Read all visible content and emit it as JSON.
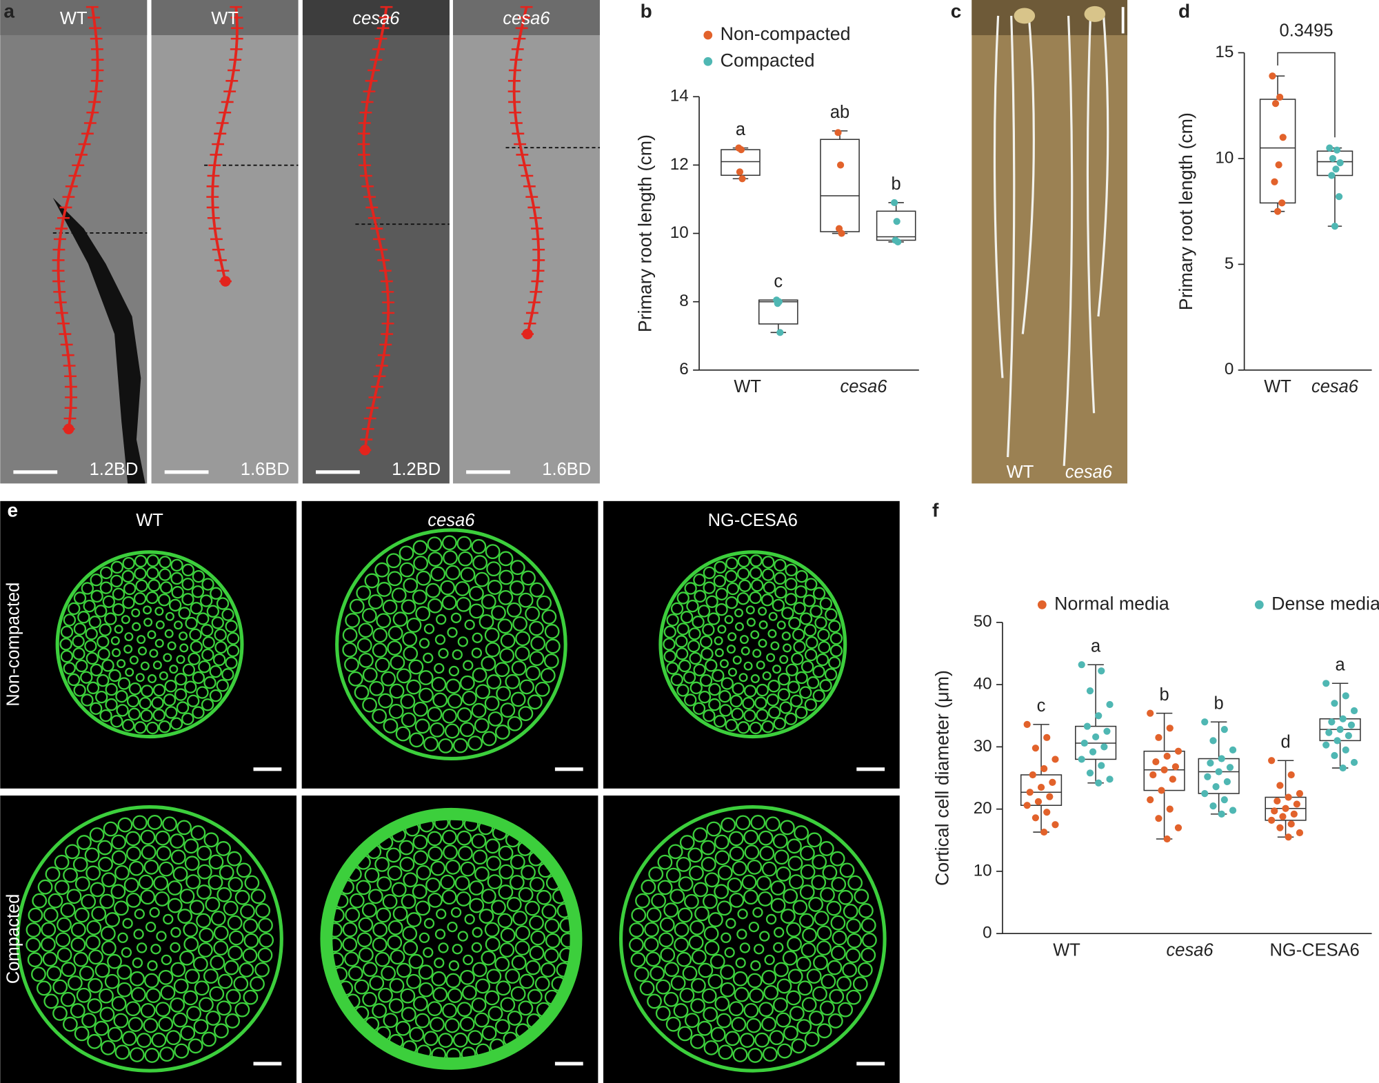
{
  "panel_a": {
    "label": "a",
    "images": [
      {
        "genotype": "WT",
        "density": "1.2BD"
      },
      {
        "genotype": "WT",
        "density": "1.6BD"
      },
      {
        "genotype": "cesa6",
        "density": "1.2BD"
      },
      {
        "genotype": "cesa6",
        "density": "1.6BD"
      }
    ]
  },
  "panel_c": {
    "label": "c",
    "labels": [
      "WT",
      "cesa6"
    ]
  },
  "panel_e": {
    "label": "e",
    "columns": [
      "WT",
      "cesa6",
      "NG-CESA6"
    ],
    "rows": [
      "Non-compacted",
      "Compacted"
    ]
  },
  "chart_data": [
    {
      "type": "box",
      "panel": "b",
      "ylabel": "Primary root length (cm)",
      "categories": [
        "WT",
        "cesa6"
      ],
      "category_italic": [
        false,
        true
      ],
      "ylim": [
        6,
        14
      ],
      "yticks": [
        6,
        8,
        10,
        12,
        14
      ],
      "series": [
        {
          "name": "Non-compacted",
          "color": "#e2622b",
          "whisker_low": [
            11.6,
            10.0
          ],
          "q1": [
            11.7,
            10.05
          ],
          "median": [
            12.1,
            11.1
          ],
          "q3": [
            12.45,
            12.75
          ],
          "whisker_high": [
            12.5,
            13.0
          ],
          "points": [
            [
              12.5,
              12.45,
              11.8,
              11.6
            ],
            [
              12.95,
              12.0,
              10.14,
              10.0
            ]
          ],
          "letters": [
            "a",
            "ab"
          ]
        },
        {
          "name": "Compacted",
          "color": "#4fb7b3",
          "whisker_low": [
            7.1,
            9.75
          ],
          "q1": [
            7.35,
            9.8
          ],
          "median": [
            8.0,
            9.9
          ],
          "q3": [
            8.05,
            10.65
          ],
          "whisker_high": [
            8.05,
            10.9
          ],
          "points": [
            [
              8.05,
              8.0,
              7.95,
              7.1
            ],
            [
              10.9,
              10.35,
              9.8,
              9.75
            ]
          ],
          "letters": [
            "c",
            "b"
          ]
        }
      ]
    },
    {
      "type": "box",
      "panel": "d",
      "ylabel": "Primary root length (cm)",
      "categories": [
        "WT",
        "cesa6"
      ],
      "category_italic": [
        false,
        true
      ],
      "ylim": [
        0,
        15
      ],
      "yticks": [
        0,
        5,
        10,
        15
      ],
      "annotation": "0.3495",
      "series": [
        {
          "colors": [
            "#e2622b",
            "#4fb7b3"
          ],
          "whisker_low": [
            7.5,
            6.8
          ],
          "q1": [
            7.9,
            9.2
          ],
          "median": [
            10.5,
            9.85
          ],
          "q3": [
            12.8,
            10.35
          ],
          "whisker_high": [
            13.9,
            10.5
          ],
          "points": [
            [
              13.9,
              12.9,
              12.6,
              11.0,
              9.7,
              8.9,
              7.9,
              7.5
            ],
            [
              10.5,
              10.4,
              10.0,
              9.8,
              9.5,
              9.2,
              8.2,
              6.8
            ]
          ]
        }
      ]
    },
    {
      "type": "box",
      "panel": "f",
      "ylabel": "Cortical cell diameter (μm)",
      "categories": [
        "WT",
        "cesa6",
        "NG-CESA6"
      ],
      "category_italic": [
        false,
        true,
        false
      ],
      "ylim": [
        0,
        50
      ],
      "yticks": [
        0,
        10,
        20,
        30,
        40,
        50
      ],
      "series": [
        {
          "name": "Normal media",
          "color": "#e2622b",
          "whisker_low": [
            16.3,
            15.2,
            15.5
          ],
          "q1": [
            20.6,
            23.0,
            18.2
          ],
          "median": [
            22.7,
            26.3,
            20.1
          ],
          "q3": [
            25.5,
            29.3,
            21.9
          ],
          "whisker_high": [
            33.6,
            35.4,
            27.8
          ],
          "points": [
            [
              33.6,
              31.5,
              29.8,
              28.0,
              26.5,
              25.5,
              24.3,
              23.5,
              22.7,
              22.0,
              21.2,
              20.6,
              19.5,
              18.6,
              17.5,
              16.3
            ],
            [
              35.4,
              33.0,
              31.5,
              29.3,
              28.5,
              27.6,
              26.8,
              26.3,
              25.5,
              24.8,
              23.0,
              21.5,
              20.0,
              18.5,
              17.0,
              15.2
            ],
            [
              27.8,
              25.5,
              23.8,
              22.5,
              21.9,
              21.3,
              20.8,
              20.1,
              19.7,
              19.2,
              18.8,
              18.2,
              17.6,
              17.0,
              16.2,
              15.5
            ]
          ],
          "letters": [
            "c",
            "b",
            "d"
          ]
        },
        {
          "name": "Dense media",
          "color": "#4fb7b3",
          "whisker_low": [
            24.2,
            19.2,
            26.6
          ],
          "q1": [
            28.0,
            22.5,
            31.0
          ],
          "median": [
            30.6,
            26.0,
            32.8
          ],
          "q3": [
            33.3,
            28.1,
            34.5
          ],
          "whisker_high": [
            43.2,
            34.0,
            40.2
          ],
          "points": [
            [
              43.2,
              42.2,
              39.0,
              36.8,
              35.0,
              33.3,
              32.5,
              31.6,
              30.6,
              30.0,
              29.2,
              28.0,
              27.0,
              25.8,
              24.8,
              24.2
            ],
            [
              34.0,
              32.8,
              31.0,
              29.5,
              28.1,
              27.4,
              26.7,
              26.0,
              25.2,
              24.4,
              23.6,
              22.5,
              21.5,
              20.5,
              19.8,
              19.2
            ],
            [
              40.2,
              38.2,
              37.0,
              35.8,
              34.5,
              34.0,
              33.5,
              32.8,
              32.3,
              31.8,
              31.0,
              30.3,
              29.5,
              28.6,
              27.5,
              26.6
            ]
          ],
          "letters": [
            "a",
            "b",
            "a"
          ]
        }
      ]
    }
  ]
}
